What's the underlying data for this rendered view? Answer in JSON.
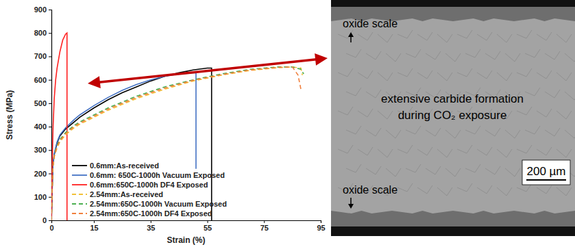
{
  "chart_data": {
    "type": "line",
    "x_label": "Strain (%)",
    "y_label": "Stress (MPa)",
    "xlim": [
      0,
      95
    ],
    "xticks": [
      0,
      15,
      35,
      55,
      75,
      95
    ],
    "ylim": [
      0,
      900
    ],
    "yticks": [
      0,
      100,
      200,
      300,
      400,
      500,
      600,
      700,
      800,
      900
    ],
    "grid": false,
    "legend": "lower left",
    "series": [
      {
        "name": "0.6mm:As-received",
        "color": "#000000",
        "line_style": "solid",
        "x": [
          0,
          0.5,
          1,
          2,
          3,
          5,
          8,
          10,
          15,
          20,
          25,
          30,
          35,
          40,
          45,
          50,
          55,
          56.5,
          56.5
        ],
        "values": [
          0,
          230,
          280,
          330,
          360,
          390,
          420,
          440,
          480,
          515,
          545,
          570,
          595,
          615,
          630,
          642,
          650,
          650,
          0
        ]
      },
      {
        "name": "0.6mm: 650C-1000h Vacuum Exposed",
        "color": "#4472c4",
        "line_style": "solid",
        "x": [
          0,
          0.5,
          1,
          2,
          3,
          5,
          8,
          10,
          15,
          20,
          25,
          30,
          35,
          40,
          45,
          50,
          51,
          51
        ],
        "values": [
          0,
          230,
          285,
          335,
          365,
          395,
          430,
          450,
          490,
          525,
          555,
          580,
          600,
          615,
          625,
          630,
          630,
          220
        ]
      },
      {
        "name": "0.6mm:650C-1000h DF4 Exposed",
        "color": "#ff2020",
        "line_style": "solid",
        "x": [
          0,
          0.3,
          0.6,
          1,
          1.5,
          2,
          3,
          4,
          5,
          5.5,
          5.5
        ],
        "values": [
          0,
          250,
          400,
          520,
          600,
          650,
          720,
          770,
          795,
          800,
          0
        ]
      },
      {
        "name": "2.54mm:As-received",
        "color": "#f2c037",
        "line_style": "dashed",
        "x": [
          0,
          0.5,
          1,
          2,
          3,
          5,
          8,
          10,
          15,
          20,
          30,
          40,
          50,
          60,
          70,
          80,
          85,
          88,
          88.5
        ],
        "values": [
          0,
          220,
          270,
          310,
          335,
          365,
          395,
          410,
          440,
          470,
          520,
          560,
          595,
          620,
          640,
          652,
          655,
          650,
          620
        ]
      },
      {
        "name": "2.54mm:650C-1000h Vacuum Exposed",
        "color": "#4caf50",
        "line_style": "dashed",
        "x": [
          0,
          0.5,
          1,
          2,
          3,
          5,
          8,
          10,
          15,
          20,
          30,
          40,
          50,
          60,
          70,
          80,
          85,
          88,
          89
        ],
        "values": [
          0,
          230,
          280,
          320,
          345,
          375,
          405,
          420,
          450,
          480,
          530,
          570,
          600,
          625,
          645,
          655,
          655,
          645,
          625
        ]
      },
      {
        "name": "2.54mm:650C-1000h DF4 Exposed",
        "color": "#f07f3c",
        "line_style": "dashed",
        "x": [
          0,
          0.5,
          1,
          2,
          3,
          5,
          8,
          10,
          15,
          20,
          30,
          40,
          50,
          60,
          70,
          80,
          85,
          87,
          88
        ],
        "values": [
          0,
          225,
          275,
          315,
          340,
          370,
          400,
          415,
          445,
          475,
          525,
          565,
          598,
          622,
          642,
          653,
          655,
          620,
          560
        ]
      }
    ],
    "annotations": [
      "oxide scale",
      "extensive carbide formation during CO₂ exposure",
      "oxide scale",
      "200 µm"
    ]
  }
}
